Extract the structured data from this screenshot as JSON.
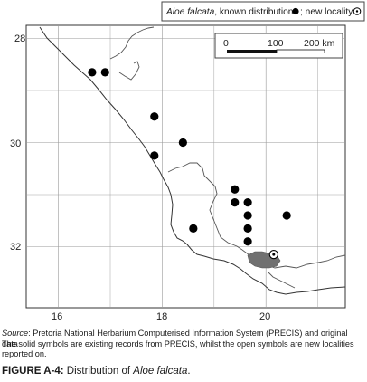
{
  "map": {
    "legend": {
      "species": "Aloe falcata",
      "text_mid": ", known distribution ",
      "text_end": "; new locality "
    },
    "scale_bar": {
      "ticks": [
        "0",
        "100",
        "200 km"
      ]
    },
    "lat_labels": [
      "28",
      "30",
      "32"
    ],
    "lon_labels": [
      "16",
      "18",
      "20"
    ],
    "graticule": {
      "lat": [
        28,
        30,
        32
      ],
      "lon": [
        16,
        18,
        20
      ],
      "lat_mid": [
        29,
        31
      ],
      "lon_mid": [
        17,
        19,
        21
      ]
    },
    "known_records": [
      {
        "lon": 16.65,
        "lat": 28.65
      },
      {
        "lon": 16.9,
        "lat": 28.65
      },
      {
        "lon": 17.85,
        "lat": 29.5
      },
      {
        "lon": 18.4,
        "lat": 30.0
      },
      {
        "lon": 17.85,
        "lat": 30.25
      },
      {
        "lon": 19.4,
        "lat": 30.9
      },
      {
        "lon": 19.4,
        "lat": 31.15
      },
      {
        "lon": 19.65,
        "lat": 31.15
      },
      {
        "lon": 19.65,
        "lat": 31.4
      },
      {
        "lon": 20.4,
        "lat": 31.4
      },
      {
        "lon": 18.6,
        "lat": 31.65
      },
      {
        "lon": 19.65,
        "lat": 31.65
      },
      {
        "lon": 19.65,
        "lat": 31.9
      }
    ],
    "new_records": [
      {
        "lon": 20.15,
        "lat": 32.15
      }
    ],
    "colors": {
      "frame": "#333333",
      "coast": "#333333",
      "border": "#555555",
      "graticule": "#9a9a9a",
      "highlight": "#707070",
      "dot": "#000000"
    }
  },
  "caption": {
    "source_label": "Source",
    "source_text": ": Pretoria National Herbarium Computerised Information System (PRECIS) and original data",
    "note_text": "The solid symbols are existing records from PRECIS, whilst the open symbols are new localities reported on."
  },
  "figure": {
    "label": "FIGURE A-4:",
    "text": " Distribution of ",
    "species": "Aloe falcata",
    "end": "."
  }
}
